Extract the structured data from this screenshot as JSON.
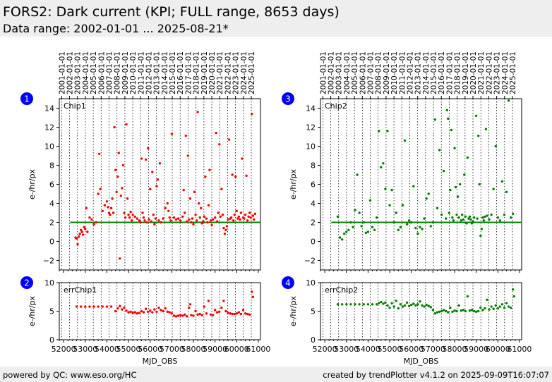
{
  "header": {
    "title": "FORS2: Dark current (KPI; FULL range, 8653 days)",
    "subtitle": "Data range: 2002-01-01 ... 2025-08-21*"
  },
  "footer": {
    "left": "powered by QC: www.eso.org/HC",
    "right": "created by trendPlotter v4.1.2 on 2025-09-09T16:07:07"
  },
  "colors": {
    "chip1": "#ff0000",
    "chip2": "#008000",
    "threshold": "#008000",
    "badge": "#0000ff",
    "background_band": "#eeeeee"
  },
  "chart_data": [
    {
      "type": "scatter",
      "badge": "1",
      "panel_label": "Chip1",
      "ylabel": "e-/hr/px",
      "xlabel": "",
      "xlim": [
        51800,
        61100
      ],
      "ylim": [
        -3,
        15
      ],
      "yticks": [
        -2,
        0,
        2,
        4,
        6,
        8,
        10,
        12,
        14
      ],
      "xticks": [
        52000,
        53000,
        54000,
        55000,
        56000,
        57000,
        58000,
        59000,
        60000,
        61000
      ],
      "year_ticks": [
        "2001-01-01",
        "2002-01-01",
        "2003-01-01",
        "2004-01-01",
        "2005-01-01",
        "2006-01-01",
        "2007-01-01",
        "2008-01-01",
        "2009-01-01",
        "2010-01-01",
        "2011-01-01",
        "2012-01-01",
        "2013-01-01",
        "2014-01-01",
        "2015-01-01",
        "2016-01-01",
        "2017-01-01",
        "2018-01-01",
        "2019-01-01",
        "2020-01-01",
        "2021-01-01",
        "2022-01-01",
        "2023-01-01",
        "2024-01-01",
        "2025-01-01"
      ],
      "threshold": 2.0,
      "color": "#ff0000",
      "series": [
        {
          "x": [
            52550,
            52600,
            52650,
            52700,
            52750,
            52800,
            52850,
            52900,
            52950,
            53000,
            53050,
            53100,
            53200,
            53300,
            53400,
            53500,
            53600,
            53650,
            53700,
            53800,
            53900,
            54000,
            54050,
            54100,
            54150,
            54200,
            54250,
            54300,
            54350,
            54400,
            54450,
            54500,
            54550,
            54600,
            54650,
            54700,
            54750,
            54800,
            54850,
            54900,
            54950,
            55000,
            55050,
            55100,
            55150,
            55200,
            55300,
            55400,
            55500,
            55550,
            55600,
            55650,
            55700,
            55750,
            55800,
            55850,
            55900,
            55950,
            56000,
            56050,
            56100,
            56150,
            56200,
            56250,
            56300,
            56350,
            56400,
            56450,
            56500,
            56600,
            56700,
            56800,
            56850,
            56900,
            56950,
            57000,
            57100,
            57200,
            57300,
            57400,
            57500,
            57550,
            57600,
            57650,
            57700,
            57750,
            57800,
            57850,
            57900,
            57950,
            58000,
            58050,
            58100,
            58150,
            58200,
            58250,
            58300,
            58350,
            58400,
            58450,
            58500,
            58550,
            58600,
            58650,
            58700,
            58750,
            58800,
            58850,
            58900,
            59000,
            59050,
            59100,
            59150,
            59200,
            59250,
            59300,
            59350,
            59400,
            59450,
            59500,
            59550,
            59600,
            59650,
            59700,
            59750,
            59800,
            59850,
            59900,
            59950,
            60000,
            60050,
            60100,
            60150,
            60200,
            60250,
            60300,
            60350,
            60400,
            60450,
            60500,
            60550,
            60600,
            60650,
            60700,
            60750,
            60800,
            60850
          ],
          "y": [
            0.4,
            0.3,
            -0.3,
            0.5,
            0.8,
            1.2,
            1.0,
            0.7,
            1.5,
            1.3,
            3.5,
            1.0,
            2.5,
            2.3,
            1.8,
            2.0,
            5.0,
            9.2,
            5.5,
            3.2,
            3.8,
            4.2,
            3.6,
            3.0,
            2.8,
            3.5,
            4.5,
            3.0,
            12.0,
            7.5,
            5.2,
            6.8,
            9.3,
            -1.8,
            4.8,
            5.6,
            8.0,
            3.0,
            2.5,
            12.3,
            4.5,
            2.8,
            2.5,
            3.1,
            2.2,
            2.8,
            2.6,
            2.4,
            2.2,
            2.0,
            8.7,
            3.0,
            2.5,
            2.2,
            8.6,
            2.0,
            9.8,
            2.3,
            5.5,
            2.1,
            7.3,
            2.8,
            1.8,
            2.4,
            5.8,
            6.5,
            2.2,
            8.2,
            2.0,
            2.4,
            3.5,
            4.0,
            3.2,
            2.5,
            2.2,
            11.3,
            2.5,
            2.3,
            2.4,
            2.2,
            2.6,
            5.4,
            3.0,
            11.1,
            2.1,
            9.0,
            2.3,
            4.5,
            2.0,
            2.4,
            1.8,
            5.2,
            2.8,
            2.2,
            13.6,
            4.0,
            2.5,
            3.5,
            1.9,
            2.1,
            2.6,
            6.8,
            2.4,
            2.0,
            3.8,
            7.5,
            2.2,
            1.7,
            2.3,
            2.5,
            11.4,
            2.1,
            3.0,
            10.2,
            2.6,
            5.5,
            2.8,
            1.4,
            0.8,
            1.2,
            1.6,
            2.3,
            10.7,
            2.4,
            2.5,
            7.0,
            2.2,
            2.8,
            6.8,
            3.2,
            2.4,
            2.6,
            2.3,
            3.0,
            8.7,
            2.5,
            2.4,
            2.8,
            6.9,
            2.2,
            2.6,
            3.0,
            2.5,
            13.4,
            2.7,
            2.3,
            2.9
          ]
        }
      ]
    },
    {
      "type": "scatter",
      "badge": "2",
      "panel_label": "errChip1",
      "ylabel": "e-/hr/px",
      "xlabel": "MJD_OBS",
      "xlim": [
        51800,
        61100
      ],
      "ylim": [
        0,
        10
      ],
      "yticks": [
        0,
        5,
        10
      ],
      "xticks": [
        52000,
        53000,
        54000,
        55000,
        56000,
        57000,
        58000,
        59000,
        60000,
        61000
      ],
      "color": "#ff0000",
      "series": [
        {
          "x": [
            52600,
            52800,
            53000,
            53200,
            53400,
            53600,
            53800,
            54000,
            54200,
            54400,
            54500,
            54600,
            54700,
            54800,
            54900,
            55000,
            55100,
            55200,
            55300,
            55400,
            55500,
            55600,
            55700,
            55800,
            55900,
            56000,
            56100,
            56200,
            56300,
            56400,
            56500,
            56600,
            56700,
            56800,
            56900,
            57000,
            57100,
            57200,
            57300,
            57400,
            57500,
            57600,
            57700,
            57800,
            57850,
            57900,
            58000,
            58100,
            58200,
            58300,
            58400,
            58500,
            58600,
            58700,
            58800,
            58900,
            59000,
            59100,
            59200,
            59300,
            59400,
            59500,
            59600,
            59700,
            59800,
            59900,
            60000,
            60100,
            60200,
            60300,
            60400,
            60500,
            60600,
            60700,
            60750
          ],
          "y": [
            5.8,
            5.8,
            5.8,
            5.8,
            5.8,
            5.8,
            5.8,
            5.8,
            5.8,
            5.0,
            5.5,
            5.9,
            5.3,
            5.6,
            5.1,
            4.8,
            4.9,
            4.7,
            4.8,
            4.6,
            4.7,
            5.0,
            4.8,
            5.4,
            4.9,
            5.1,
            4.8,
            5.3,
            4.9,
            5.6,
            5.2,
            5.0,
            5.5,
            4.9,
            4.8,
            4.6,
            4.2,
            4.1,
            4.2,
            4.3,
            4.2,
            4.4,
            4.1,
            5.6,
            6.2,
            4.3,
            4.2,
            5.0,
            4.4,
            4.5,
            4.3,
            5.8,
            4.6,
            6.8,
            4.4,
            4.3,
            5.2,
            4.8,
            4.9,
            5.6,
            6.8,
            5.0,
            4.7,
            4.6,
            4.5,
            4.5,
            4.6,
            4.8,
            4.5,
            5.2,
            4.6,
            4.5,
            4.4,
            8.4,
            7.5
          ]
        }
      ]
    },
    {
      "type": "scatter",
      "badge": "3",
      "panel_label": "Chip2",
      "ylabel": "e-/hr/px",
      "xlabel": "",
      "xlim": [
        51800,
        61100
      ],
      "ylim": [
        -3,
        15
      ],
      "yticks": [
        -2,
        0,
        2,
        4,
        6,
        8,
        10,
        12,
        14
      ],
      "xticks": [
        52000,
        53000,
        54000,
        55000,
        56000,
        57000,
        58000,
        59000,
        60000,
        61000
      ],
      "year_ticks": [
        "2001-01-01",
        "2002-01-01",
        "2003-01-01",
        "2004-01-01",
        "2005-01-01",
        "2006-01-01",
        "2007-01-01",
        "2008-01-01",
        "2009-01-01",
        "2010-01-01",
        "2011-01-01",
        "2012-01-01",
        "2013-01-01",
        "2014-01-01",
        "2015-01-01",
        "2016-01-01",
        "2017-01-01",
        "2018-01-01",
        "2019-01-01",
        "2020-01-01",
        "2021-01-01",
        "2022-01-01",
        "2023-01-01",
        "2024-01-01",
        "2025-01-01"
      ],
      "threshold": 2.0,
      "color": "#008000",
      "series": [
        {
          "x": [
            52600,
            52700,
            52800,
            52900,
            53000,
            53100,
            53200,
            53300,
            53400,
            53500,
            53600,
            53700,
            53800,
            53900,
            54000,
            54100,
            54200,
            54300,
            54400,
            54500,
            54600,
            54700,
            54800,
            54900,
            55000,
            55100,
            55200,
            55300,
            55400,
            55500,
            55600,
            55700,
            55800,
            55900,
            56000,
            56100,
            56200,
            56300,
            56400,
            56500,
            56600,
            56700,
            56800,
            56900,
            57000,
            57100,
            57200,
            57300,
            57400,
            57500,
            57600,
            57650,
            57700,
            57750,
            57800,
            57850,
            57900,
            57950,
            58000,
            58050,
            58100,
            58150,
            58200,
            58250,
            58300,
            58350,
            58400,
            58450,
            58500,
            58550,
            58600,
            58650,
            58700,
            58750,
            58800,
            58850,
            58900,
            59000,
            59050,
            59100,
            59150,
            59200,
            59250,
            59300,
            59350,
            59400,
            59450,
            59500,
            59600,
            59700,
            59800,
            59900,
            60000,
            60100,
            60200,
            60300,
            60400,
            60500,
            60600,
            60700
          ],
          "y": [
            2.6,
            0.4,
            0.2,
            0.8,
            1.0,
            1.2,
            2.0,
            1.5,
            3.3,
            7.0,
            3.0,
            1.6,
            2.0,
            0.9,
            1.0,
            4.3,
            1.5,
            1.2,
            2.5,
            11.6,
            7.8,
            8.2,
            5.5,
            11.6,
            3.8,
            5.4,
            2.0,
            3.0,
            1.2,
            1.5,
            3.8,
            10.6,
            1.8,
            2.2,
            2.0,
            5.8,
            1.4,
            0.8,
            1.5,
            1.3,
            2.4,
            4.5,
            5.0,
            1.6,
            2.0,
            12.8,
            3.5,
            9.6,
            2.8,
            7.4,
            2.4,
            13.8,
            12.9,
            3.0,
            5.4,
            11.7,
            2.5,
            2.2,
            9.8,
            5.7,
            2.8,
            4.7,
            2.5,
            6.0,
            2.2,
            2.8,
            2.3,
            7.0,
            2.6,
            1.9,
            8.8,
            2.4,
            2.6,
            2.3,
            1.9,
            2.1,
            2.5,
            13.2,
            2.4,
            11.1,
            6.0,
            0.6,
            1.3,
            2.5,
            2.2,
            2.6,
            11.8,
            2.7,
            2.3,
            2.8,
            5.5,
            10.0,
            2.5,
            2.2,
            6.3,
            2.8,
            5.2,
            14.8,
            2.5,
            2.9
          ]
        }
      ]
    },
    {
      "type": "scatter",
      "badge": "4",
      "panel_label": "errChip2",
      "ylabel": "e-/hr/px",
      "xlabel": "MJD_OBS",
      "xlim": [
        51800,
        61100
      ],
      "ylim": [
        0,
        10
      ],
      "yticks": [
        0,
        5,
        10
      ],
      "xticks": [
        52000,
        53000,
        54000,
        55000,
        56000,
        57000,
        58000,
        59000,
        60000,
        61000
      ],
      "color": "#008000",
      "series": [
        {
          "x": [
            52600,
            52800,
            53000,
            53200,
            53400,
            53600,
            53800,
            54000,
            54200,
            54400,
            54500,
            54600,
            54700,
            54800,
            54900,
            55000,
            55100,
            55200,
            55300,
            55400,
            55500,
            55600,
            55700,
            55800,
            55900,
            56000,
            56100,
            56200,
            56300,
            56400,
            56500,
            56600,
            56700,
            56800,
            56900,
            57000,
            57100,
            57200,
            57300,
            57400,
            57500,
            57600,
            57700,
            57800,
            57900,
            58000,
            58100,
            58200,
            58300,
            58400,
            58500,
            58600,
            58700,
            58800,
            58900,
            59000,
            59100,
            59200,
            59300,
            59400,
            59500,
            59600,
            59700,
            59800,
            59900,
            60000,
            60100,
            60200,
            60300,
            60400,
            60500,
            60600,
            60700,
            60750
          ],
          "y": [
            6.2,
            6.2,
            6.2,
            6.2,
            6.2,
            6.2,
            6.2,
            6.2,
            6.2,
            6.2,
            6.4,
            6.6,
            6.3,
            6.5,
            6.0,
            5.6,
            6.4,
            5.8,
            6.8,
            5.5,
            6.2,
            5.8,
            6.0,
            6.5,
            5.9,
            6.1,
            6.3,
            6.0,
            6.2,
            6.7,
            6.0,
            5.8,
            6.1,
            5.9,
            5.7,
            5.2,
            4.6,
            4.8,
            4.9,
            5.0,
            5.2,
            5.0,
            4.8,
            5.6,
            4.9,
            5.1,
            5.0,
            6.0,
            5.1,
            5.2,
            5.0,
            7.6,
            5.1,
            5.2,
            5.0,
            4.9,
            5.0,
            5.6,
            5.2,
            5.5,
            7.0,
            5.3,
            5.8,
            5.4,
            6.0,
            5.5,
            5.8,
            6.2,
            5.6,
            6.4,
            5.8,
            5.6,
            8.8,
            7.6
          ]
        }
      ]
    }
  ]
}
